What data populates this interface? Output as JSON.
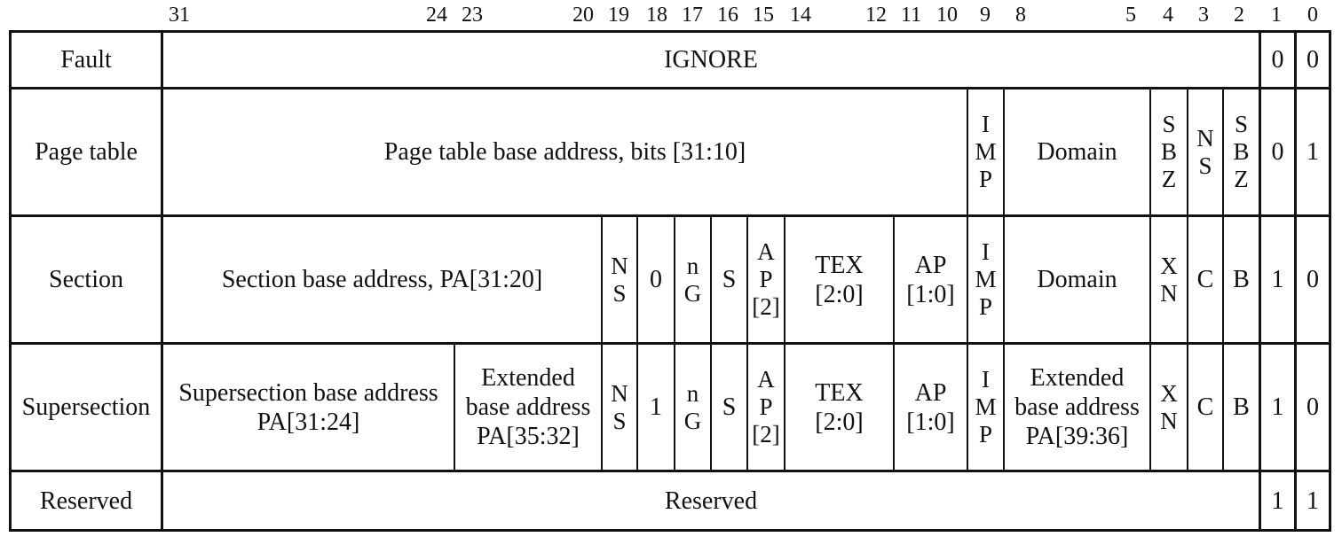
{
  "bit_numbers": [
    "31",
    "24",
    "23",
    "20",
    "19",
    "18",
    "17",
    "16",
    "15",
    "14",
    "12",
    "11",
    "10",
    "9",
    "8",
    "5",
    "4",
    "3",
    "2",
    "1",
    "0"
  ],
  "rows": {
    "fault": {
      "label": "Fault",
      "ignore": "IGNORE",
      "bit1": "0",
      "bit0": "0"
    },
    "page_table": {
      "label": "Page table",
      "base": "Page table base address, bits [31:10]",
      "imp": "I\nM\nP",
      "domain": "Domain",
      "sbz_a": "S\nB\nZ",
      "ns": "N\nS",
      "sbz_b": "S\nB\nZ",
      "bit1": "0",
      "bit0": "1"
    },
    "section": {
      "label": "Section",
      "base": "Section base address, PA[31:20]",
      "ns": "N\nS",
      "bit18": "0",
      "ng": "n\nG",
      "s": "S",
      "ap2": "A\nP\n[2]",
      "tex": "TEX\n[2:0]",
      "ap": "AP\n[1:0]",
      "imp": "I\nM\nP",
      "domain": "Domain",
      "xn": "X\nN",
      "c": "C",
      "b": "B",
      "bit1": "1",
      "bit0": "0"
    },
    "supersection": {
      "label": "Supersection",
      "base": "Supersection base address\nPA[31:24]",
      "ext_high": "Extended\nbase address\nPA[35:32]",
      "ns": "N\nS",
      "bit18": "1",
      "ng": "n\nG",
      "s": "S",
      "ap2": "A\nP\n[2]",
      "tex": "TEX\n[2:0]",
      "ap": "AP\n[1:0]",
      "imp": "I\nM\nP",
      "ext_low": "Extended\nbase address\nPA[39:36]",
      "xn": "X\nN",
      "c": "C",
      "b": "B",
      "bit1": "1",
      "bit0": "0"
    },
    "reserved": {
      "label": "Reserved",
      "body": "Reserved",
      "bit1": "1",
      "bit0": "1"
    }
  }
}
